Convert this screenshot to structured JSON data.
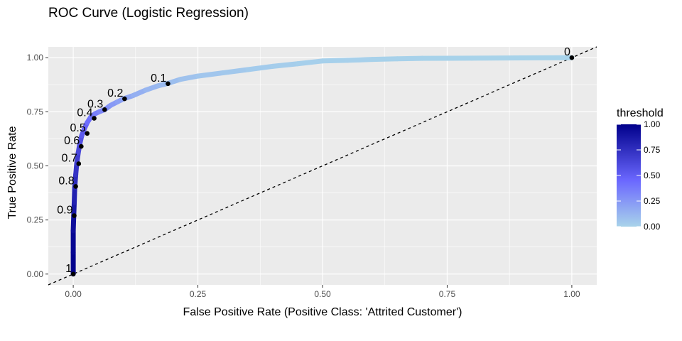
{
  "chart_data": {
    "type": "line",
    "title": "ROC Curve (Logistic Regression)",
    "xlabel": "False Positive Rate (Positive Class: 'Attrited Customer')",
    "ylabel": "True Positive Rate",
    "xlim": [
      -0.05,
      1.05
    ],
    "ylim": [
      -0.05,
      1.05
    ],
    "x_ticks": [
      0.0,
      0.25,
      0.5,
      0.75,
      1.0
    ],
    "x_tick_labels": [
      "0.00",
      "0.25",
      "0.50",
      "0.75",
      "1.00"
    ],
    "y_ticks": [
      0.0,
      0.25,
      0.5,
      0.75,
      1.0
    ],
    "y_tick_labels": [
      "0.00",
      "0.25",
      "0.50",
      "0.75",
      "1.00"
    ],
    "grid": true,
    "diagonal_reference": true,
    "curve": {
      "fpr": [
        0.0,
        0.0,
        0.0,
        0.001,
        0.002,
        0.003,
        0.005,
        0.007,
        0.01,
        0.013,
        0.017,
        0.022,
        0.028,
        0.035,
        0.043,
        0.052,
        0.063,
        0.075,
        0.088,
        0.101,
        0.12,
        0.145,
        0.17,
        0.188,
        0.215,
        0.25,
        0.3,
        0.35,
        0.4,
        0.45,
        0.5,
        0.55,
        0.6,
        0.65,
        0.7,
        0.8,
        0.9,
        1.0
      ],
      "tpr": [
        0.0,
        0.1,
        0.2,
        0.27,
        0.33,
        0.4,
        0.46,
        0.51,
        0.56,
        0.6,
        0.64,
        0.67,
        0.7,
        0.725,
        0.74,
        0.75,
        0.76,
        0.78,
        0.795,
        0.81,
        0.825,
        0.85,
        0.87,
        0.88,
        0.9,
        0.915,
        0.93,
        0.945,
        0.96,
        0.972,
        0.985,
        0.988,
        0.992,
        0.995,
        0.997,
        0.998,
        0.999,
        1.0
      ],
      "threshold": [
        1.0,
        0.98,
        0.95,
        0.9,
        0.85,
        0.8,
        0.75,
        0.7,
        0.65,
        0.6,
        0.55,
        0.5,
        0.45,
        0.4,
        0.37,
        0.34,
        0.3,
        0.26,
        0.23,
        0.2,
        0.17,
        0.13,
        0.11,
        0.1,
        0.08,
        0.06,
        0.05,
        0.04,
        0.03,
        0.02,
        0.015,
        0.012,
        0.01,
        0.008,
        0.005,
        0.003,
        0.001,
        0.0
      ]
    },
    "threshold_points": [
      {
        "label": "1",
        "fpr": 0.0,
        "tpr": 0.0
      },
      {
        "label": "0.9",
        "fpr": 0.002,
        "tpr": 0.27
      },
      {
        "label": "0.8",
        "fpr": 0.005,
        "tpr": 0.405
      },
      {
        "label": "0.7",
        "fpr": 0.011,
        "tpr": 0.51
      },
      {
        "label": "0.6",
        "fpr": 0.016,
        "tpr": 0.59
      },
      {
        "label": "0.5",
        "fpr": 0.028,
        "tpr": 0.65
      },
      {
        "label": "0.4",
        "fpr": 0.042,
        "tpr": 0.72
      },
      {
        "label": "0.3",
        "fpr": 0.063,
        "tpr": 0.76
      },
      {
        "label": "0.2",
        "fpr": 0.103,
        "tpr": 0.81
      },
      {
        "label": "0.1",
        "fpr": 0.19,
        "tpr": 0.88
      },
      {
        "label": "0",
        "fpr": 1.0,
        "tpr": 1.0
      }
    ],
    "legend": {
      "title": "threshold",
      "placement": "right",
      "ticks": [
        1.0,
        0.75,
        0.5,
        0.25,
        0.0
      ],
      "tick_labels": [
        "1.00",
        "0.75",
        "0.50",
        "0.25",
        "0.00"
      ],
      "color_low": "#a8d3ea",
      "color_mid": "#6b68ff",
      "color_high": "#00008b"
    },
    "colors": {
      "panel_bg": "#ebebeb",
      "grid": "#ffffff",
      "point": "#000000",
      "diagonal": "#000000"
    }
  }
}
